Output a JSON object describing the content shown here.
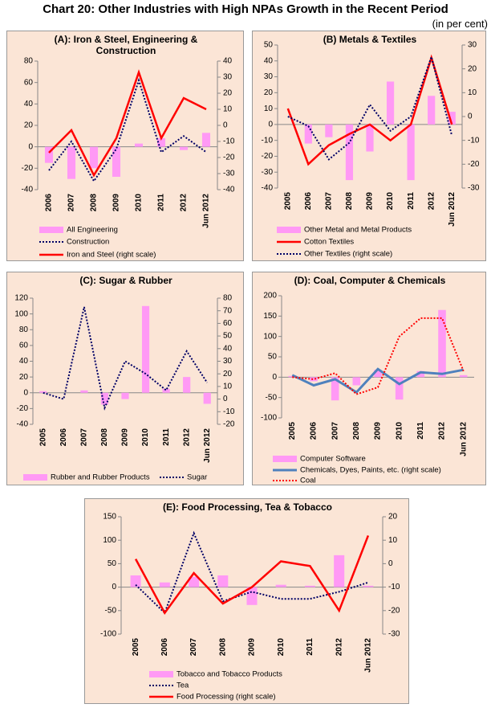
{
  "title": "Chart 20: Other Industries with High NPAs Growth in the Recent Period",
  "subtitle": "(in per cent)",
  "chart_data": [
    {
      "type": "combo",
      "title": "(A): Iron & Steel, Engineering & Construction",
      "categories": [
        "2006",
        "2007",
        "2008",
        "2009",
        "2010",
        "2011",
        "2012",
        "Jun 2012"
      ],
      "ylim": [
        -40,
        80
      ],
      "yticks": [
        -40,
        -20,
        0,
        20,
        40,
        60,
        80
      ],
      "y2lim": [
        -40,
        40
      ],
      "y2ticks": [
        -40,
        -30,
        -20,
        -10,
        0,
        10,
        20,
        30,
        40
      ],
      "series": [
        {
          "name": "All Engineering",
          "kind": "bar",
          "color": "#ff99f5",
          "values": [
            -15,
            -30,
            -20,
            -28,
            3,
            8,
            -3,
            13
          ]
        },
        {
          "name": "Construction",
          "kind": "line",
          "dash": "dotted",
          "color": "#000066",
          "values": [
            -22,
            5,
            -32,
            -2,
            62,
            -5,
            10,
            -5
          ]
        },
        {
          "name": "Iron and Steel (right scale)",
          "kind": "line",
          "dash": "solid",
          "color": "#ff0000",
          "axis": "y2",
          "values": [
            -17,
            -3,
            -31,
            -8,
            33,
            -8,
            17,
            10
          ]
        }
      ]
    },
    {
      "type": "combo",
      "title": "(B) Metals & Textiles",
      "categories": [
        "2005",
        "2006",
        "2007",
        "2008",
        "2009",
        "2010",
        "2011",
        "2012",
        "Jun 2012"
      ],
      "ylim": [
        -40,
        50
      ],
      "yticks": [
        -40,
        -30,
        -20,
        -10,
        0,
        10,
        20,
        30,
        40,
        50
      ],
      "y2lim": [
        -30,
        30
      ],
      "y2ticks": [
        -30,
        -20,
        -10,
        0,
        10,
        20,
        30
      ],
      "series": [
        {
          "name": "Other Metal and Metal Products",
          "kind": "bar",
          "color": "#ff99f5",
          "values": [
            0,
            -12,
            -8,
            -35,
            -17,
            27,
            -35,
            18,
            8
          ]
        },
        {
          "name": "Cotton Textiles",
          "kind": "line",
          "dash": "solid",
          "color": "#ff0000",
          "values": [
            10,
            -25,
            -13,
            -6,
            0,
            -10,
            0,
            42,
            0
          ]
        },
        {
          "name": "Other Textiles (right scale)",
          "kind": "line",
          "dash": "dotted",
          "color": "#000066",
          "axis": "y2",
          "values": [
            0,
            -4,
            -18,
            -11,
            5,
            -6,
            0,
            25,
            -8
          ]
        }
      ]
    },
    {
      "type": "combo",
      "title": "(C): Sugar & Rubber",
      "categories": [
        "2005",
        "2006",
        "2007",
        "2008",
        "2009",
        "2010",
        "2011",
        "2012",
        "Jun 2012"
      ],
      "ylim": [
        -40,
        120
      ],
      "yticks": [
        -40,
        -20,
        0,
        20,
        40,
        60,
        80,
        100,
        120
      ],
      "y2lim": [
        -20,
        80
      ],
      "y2ticks": [
        -20,
        -10,
        0,
        10,
        20,
        30,
        40,
        50,
        60,
        70,
        80
      ],
      "series": [
        {
          "name": "Rubber and Rubber Products",
          "kind": "bar",
          "color": "#ff99f5",
          "values": [
            2,
            0,
            3,
            -15,
            -8,
            110,
            5,
            20,
            -14
          ]
        },
        {
          "name": "Sugar",
          "kind": "line",
          "dash": "dotted",
          "color": "#000066",
          "axis": "y2",
          "values": [
            5,
            0,
            73,
            -7,
            30,
            20,
            7,
            38,
            13
          ]
        }
      ]
    },
    {
      "type": "combo",
      "title": "(D): Coal, Computer & Chemicals",
      "categories": [
        "2005",
        "2006",
        "2007",
        "2008",
        "2009",
        "2010",
        "2011",
        "2012",
        "Jun 2012"
      ],
      "ylim": [
        -100,
        200
      ],
      "yticks": [
        -100,
        -50,
        0,
        50,
        100,
        150,
        200
      ],
      "series": [
        {
          "name": "Computer Software",
          "kind": "bar",
          "color": "#ff99f5",
          "values": [
            3,
            -10,
            -57,
            -20,
            18,
            -55,
            15,
            165,
            5
          ]
        },
        {
          "name": "Chemicals, Dyes, Paints, etc. (right scale)",
          "kind": "line",
          "dash": "solid",
          "color": "#4f81bd",
          "width": 3,
          "values": [
            5,
            -20,
            -5,
            -37,
            20,
            -17,
            12,
            8,
            18
          ]
        },
        {
          "name": "Coal",
          "kind": "line",
          "dash": "dotted",
          "color": "#ff0000",
          "values": [
            0,
            -5,
            10,
            -42,
            -25,
            100,
            145,
            145,
            15
          ]
        }
      ]
    },
    {
      "type": "combo",
      "title": "(E): Food Processing, Tea & Tobacco",
      "categories": [
        "2005",
        "2006",
        "2007",
        "2008",
        "2009",
        "2010",
        "2011",
        "2012",
        "Jun 2012"
      ],
      "ylim": [
        -100,
        150
      ],
      "yticks": [
        -100,
        -50,
        0,
        50,
        100,
        150
      ],
      "y2lim": [
        -30,
        20
      ],
      "y2ticks": [
        -30,
        -20,
        -10,
        0,
        10,
        20
      ],
      "series": [
        {
          "name": "Tobacco and Tobacco Products",
          "kind": "bar",
          "color": "#ff99f5",
          "values": [
            25,
            10,
            22,
            25,
            -38,
            5,
            3,
            68,
            3
          ]
        },
        {
          "name": "Tea",
          "kind": "line",
          "dash": "dotted",
          "color": "#000066",
          "values": [
            5,
            -55,
            115,
            -30,
            -10,
            -25,
            -25,
            -10,
            10
          ]
        },
        {
          "name": "Food Processing (right scale)",
          "kind": "line",
          "dash": "solid",
          "color": "#ff0000",
          "axis": "y2",
          "values": [
            2,
            -21,
            -4,
            -17,
            -10,
            1,
            -1,
            -20,
            12
          ]
        }
      ]
    }
  ]
}
